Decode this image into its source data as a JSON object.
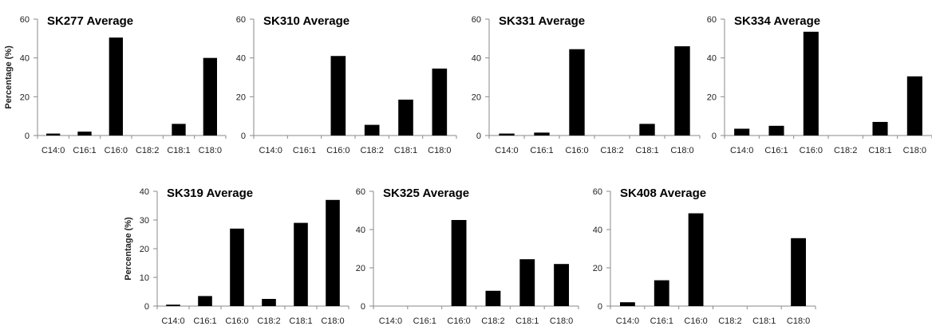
{
  "chart_data": [
    {
      "type": "bar",
      "title": "SK277 Average",
      "ylabel": "Percentage (%)",
      "categories": [
        "C14:0",
        "C16:1",
        "C16:0",
        "C18:2",
        "C18:1",
        "C18:0"
      ],
      "values": [
        1,
        2,
        50.5,
        0,
        6,
        40
      ],
      "ylim": [
        0,
        60
      ],
      "yticks": [
        0,
        20,
        40,
        60
      ],
      "grid": false,
      "legend": "none"
    },
    {
      "type": "bar",
      "title": "SK310 Average",
      "ylabel": "",
      "categories": [
        "C14:0",
        "C16:1",
        "C16:0",
        "C18:2",
        "C18:1",
        "C18:0"
      ],
      "values": [
        0,
        0,
        41,
        5.5,
        18.5,
        34.5
      ],
      "ylim": [
        0,
        60
      ],
      "yticks": [
        0,
        20,
        40,
        60
      ],
      "grid": false,
      "legend": "none"
    },
    {
      "type": "bar",
      "title": "SK331 Average",
      "ylabel": "",
      "categories": [
        "C14:0",
        "C16:1",
        "C16:0",
        "C18:2",
        "C18:1",
        "C18:0"
      ],
      "values": [
        1,
        1.5,
        44.5,
        0,
        6,
        46
      ],
      "ylim": [
        0,
        60
      ],
      "yticks": [
        0,
        20,
        40,
        60
      ],
      "grid": false,
      "legend": "none"
    },
    {
      "type": "bar",
      "title": "SK334 Average",
      "ylabel": "",
      "categories": [
        "C14:0",
        "C16:1",
        "C16:0",
        "C18:2",
        "C18:1",
        "C18:0"
      ],
      "values": [
        3.5,
        5,
        53.5,
        0,
        7,
        30.5
      ],
      "ylim": [
        0,
        60
      ],
      "yticks": [
        0,
        20,
        40,
        60
      ],
      "grid": false,
      "legend": "none"
    },
    {
      "type": "bar",
      "title": "SK319 Average",
      "ylabel": "Percentage (%)",
      "categories": [
        "C14:0",
        "C16:1",
        "C16:0",
        "C18:2",
        "C18:1",
        "C18:0"
      ],
      "values": [
        0.5,
        3.5,
        27,
        2.5,
        29,
        37
      ],
      "ylim": [
        0,
        40
      ],
      "yticks": [
        0,
        10,
        20,
        30,
        40
      ],
      "grid": false,
      "legend": "none"
    },
    {
      "type": "bar",
      "title": "SK325 Average",
      "ylabel": "",
      "categories": [
        "C14:0",
        "C16:1",
        "C16:0",
        "C18:2",
        "C18:1",
        "C18:0"
      ],
      "values": [
        0,
        0,
        45,
        8,
        24.5,
        22
      ],
      "ylim": [
        0,
        60
      ],
      "yticks": [
        0,
        20,
        40,
        60
      ],
      "grid": false,
      "legend": "none"
    },
    {
      "type": "bar",
      "title": "SK408 Average",
      "ylabel": "",
      "categories": [
        "C14:0",
        "C16:1",
        "C16:0",
        "C18:2",
        "C18:1",
        "C18:0"
      ],
      "values": [
        2,
        13.5,
        48.5,
        0,
        0,
        35.5
      ],
      "ylim": [
        0,
        60
      ],
      "yticks": [
        0,
        20,
        40,
        60
      ],
      "grid": false,
      "legend": "none"
    }
  ],
  "colors": {
    "bar": "#000000",
    "axis": "#8a8a8a",
    "text": "#222222"
  }
}
